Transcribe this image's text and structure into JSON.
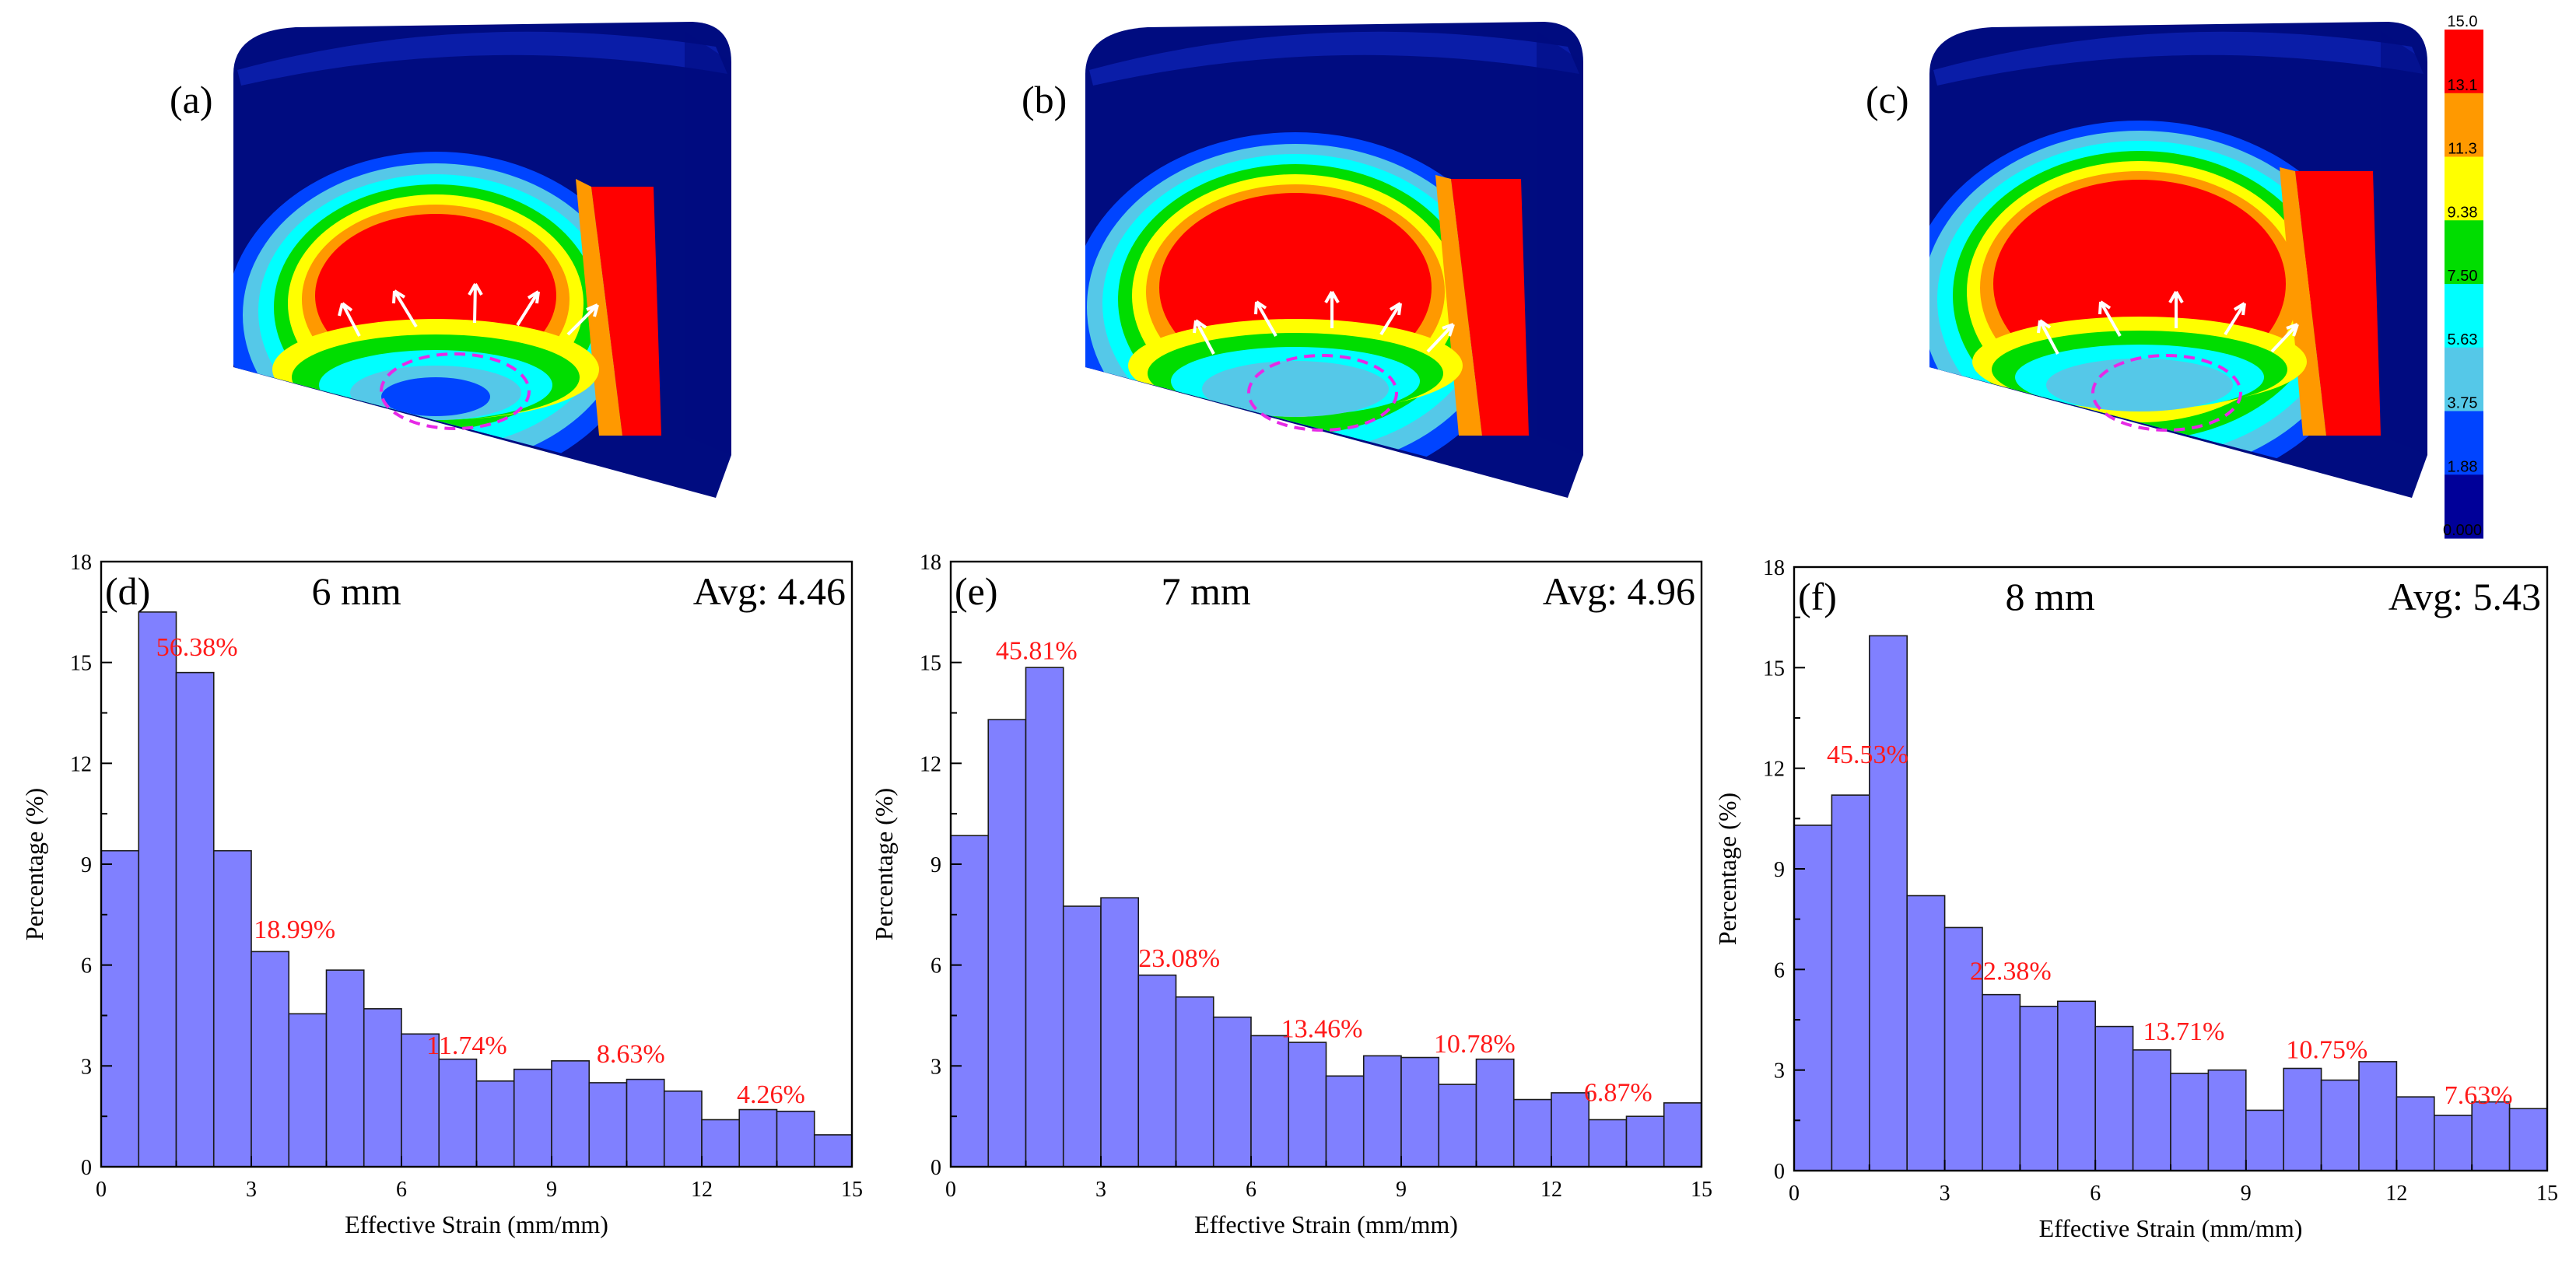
{
  "fea_panels": [
    {
      "label": "(a)",
      "ring_levels": 7
    },
    {
      "label": "(b)",
      "ring_levels": 7
    },
    {
      "label": "(c)",
      "ring_levels": 8
    }
  ],
  "colorbar": {
    "labels": [
      "15.0",
      "13.1",
      "11.3",
      "9.38",
      "7.50",
      "5.63",
      "3.75",
      "1.88",
      "0.000"
    ],
    "colors": [
      "#ff0000",
      "#ff9900",
      "#ffff00",
      "#00dd00",
      "#00ffff",
      "#55c8e8",
      "#0044ff",
      "#000099"
    ]
  },
  "chart_data": [
    {
      "type": "bar",
      "panel_label": "(d)",
      "title": "6 mm",
      "average_text": "Avg: 4.46",
      "xlabel": "Effective Strain (mm/mm)",
      "ylabel": "Percentage (%)",
      "xlim": [
        0,
        15
      ],
      "ylim": [
        0,
        18
      ],
      "xticks": [
        0,
        3,
        6,
        9,
        12,
        15
      ],
      "yticks": [
        0,
        3,
        6,
        9,
        12,
        15,
        18
      ],
      "bin_width": 0.75,
      "values": [
        9.4,
        16.5,
        14.7,
        9.4,
        6.4,
        4.55,
        5.85,
        4.7,
        3.95,
        3.2,
        2.55,
        2.9,
        3.15,
        2.5,
        2.6,
        2.25,
        1.4,
        1.7,
        1.65,
        0.95
      ],
      "annotations": [
        {
          "text": "56.38%",
          "x": 1.1,
          "y": 15.2
        },
        {
          "text": "18.99%",
          "x": 3.05,
          "y": 6.8
        },
        {
          "text": "11.74%",
          "x": 6.5,
          "y": 3.35
        },
        {
          "text": "8.63%",
          "x": 9.9,
          "y": 3.1
        },
        {
          "text": "4.26%",
          "x": 12.7,
          "y": 1.9
        }
      ]
    },
    {
      "type": "bar",
      "panel_label": "(e)",
      "title": "7 mm",
      "average_text": "Avg: 4.96",
      "xlabel": "Effective Strain (mm/mm)",
      "ylabel": "Percentage (%)",
      "xlim": [
        0,
        15
      ],
      "ylim": [
        0,
        18
      ],
      "xticks": [
        0,
        3,
        6,
        9,
        12,
        15
      ],
      "yticks": [
        0,
        3,
        6,
        9,
        12,
        15,
        18
      ],
      "bin_width": 0.75,
      "values": [
        9.85,
        13.3,
        14.85,
        7.75,
        8.0,
        5.7,
        5.05,
        4.45,
        3.9,
        3.7,
        2.7,
        3.3,
        3.25,
        2.45,
        3.2,
        2.0,
        2.2,
        1.4,
        1.5,
        1.9
      ],
      "annotations": [
        {
          "text": "45.81%",
          "x": 0.9,
          "y": 15.1
        },
        {
          "text": "23.08%",
          "x": 3.75,
          "y": 5.95
        },
        {
          "text": "13.46%",
          "x": 6.6,
          "y": 3.85
        },
        {
          "text": "10.78%",
          "x": 9.65,
          "y": 3.4
        },
        {
          "text": "6.87%",
          "x": 12.65,
          "y": 1.95
        }
      ]
    },
    {
      "type": "bar",
      "panel_label": "(f)",
      "title": "8 mm",
      "average_text": "Avg: 5.43",
      "xlabel": "Effective Strain (mm/mm)",
      "ylabel": "Percentage (%)",
      "xlim": [
        0,
        15
      ],
      "ylim": [
        0,
        18
      ],
      "xticks": [
        0,
        3,
        6,
        9,
        12,
        15
      ],
      "yticks": [
        0,
        3,
        6,
        9,
        12,
        15,
        18
      ],
      "bin_width": 0.75,
      "values": [
        10.3,
        11.2,
        15.95,
        8.2,
        7.25,
        5.25,
        4.9,
        5.05,
        4.3,
        3.6,
        2.9,
        3.0,
        1.8,
        3.05,
        2.7,
        3.25,
        2.2,
        1.65,
        2.05,
        1.85
      ],
      "annotations": [
        {
          "text": "45.53%",
          "x": 0.65,
          "y": 12.15
        },
        {
          "text": "22.38%",
          "x": 3.5,
          "y": 5.7
        },
        {
          "text": "13.71%",
          "x": 6.95,
          "y": 3.9
        },
        {
          "text": "10.75%",
          "x": 9.8,
          "y": 3.35
        },
        {
          "text": "7.63%",
          "x": 12.95,
          "y": 2.0
        }
      ]
    }
  ]
}
